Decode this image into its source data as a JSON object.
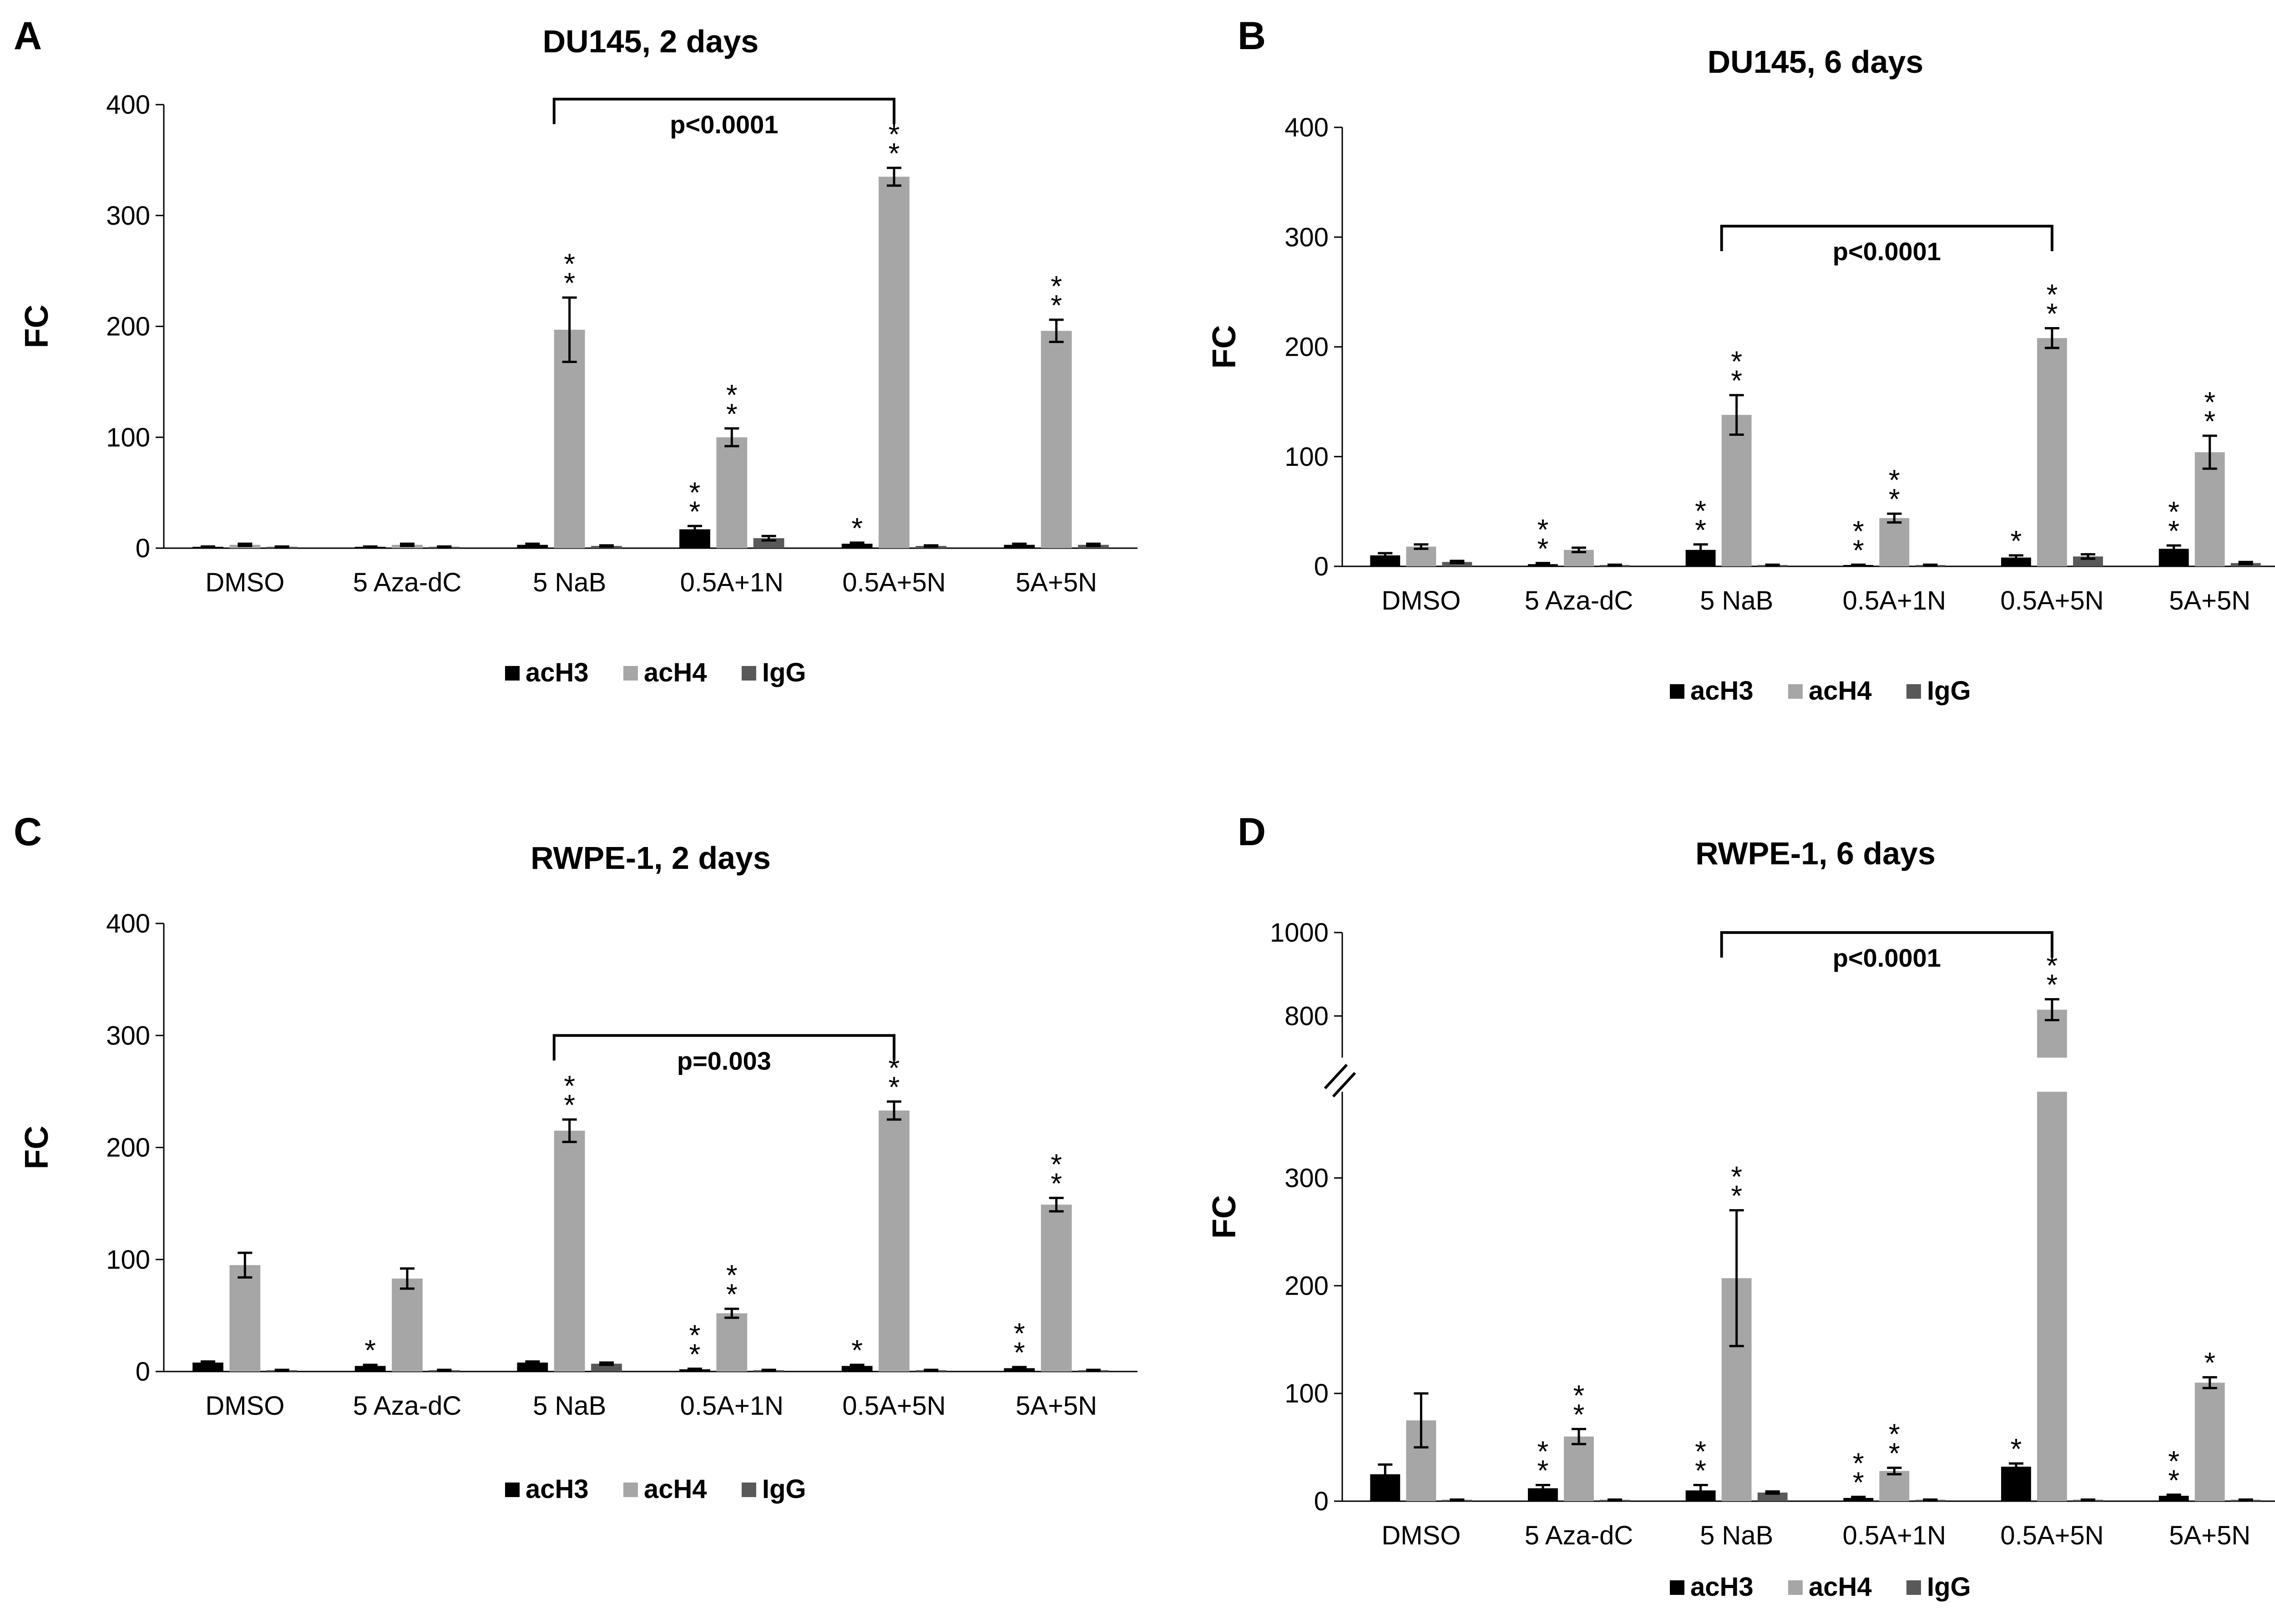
{
  "chart_data": [
    {
      "panel": "A",
      "type": "bar",
      "title": "DU145, 2 days",
      "ylabel": "FC",
      "ylim": [
        0,
        400
      ],
      "yticks": [
        "0",
        "100",
        "200",
        "300",
        "400"
      ],
      "categories": [
        "DMSO",
        "5 Aza-dC",
        "5 NaB",
        "0.5A+1N",
        "0.5A+5N",
        "5A+5N"
      ],
      "series": [
        {
          "name": "acH3",
          "values": [
            1,
            1,
            3,
            17,
            4,
            3
          ],
          "errors": [
            0.5,
            0.5,
            1,
            3,
            1,
            1
          ]
        },
        {
          "name": "acH4",
          "values": [
            3,
            3,
            197,
            100,
            335,
            196
          ],
          "errors": [
            1,
            1,
            29,
            8,
            8,
            10
          ]
        },
        {
          "name": "IgG",
          "values": [
            1,
            1,
            2,
            9,
            2,
            3
          ],
          "errors": [
            0.5,
            0.5,
            0.5,
            2,
            0.5,
            1
          ]
        }
      ],
      "significance": [
        [
          "",
          "",
          ""
        ],
        [
          "",
          "",
          ""
        ],
        [
          "",
          "**",
          ""
        ],
        [
          "**",
          "**",
          ""
        ],
        [
          "*",
          "**",
          ""
        ],
        [
          "",
          "**",
          ""
        ]
      ],
      "bracket": {
        "label": "p<0.0001",
        "from": 2,
        "to": 4,
        "y": 405
      },
      "legend": [
        "acH3",
        "acH4",
        "IgG"
      ]
    },
    {
      "panel": "B",
      "type": "bar",
      "title": "DU145, 6 days",
      "ylabel": "FC",
      "ylim": [
        0,
        400
      ],
      "yticks": [
        "0",
        "100",
        "200",
        "300",
        "400"
      ],
      "categories": [
        "DMSO",
        "5 Aza-dC",
        "5 NaB",
        "0.5A+1N",
        "0.5A+5N",
        "5A+5N"
      ],
      "series": [
        {
          "name": "acH3",
          "values": [
            10,
            2,
            15,
            1,
            8,
            16
          ],
          "errors": [
            2,
            1,
            5,
            0.5,
            2,
            3
          ]
        },
        {
          "name": "acH4",
          "values": [
            18,
            15,
            138,
            44,
            208,
            104
          ],
          "errors": [
            2,
            2,
            18,
            4,
            9,
            15
          ]
        },
        {
          "name": "IgG",
          "values": [
            4,
            1,
            1,
            1,
            9,
            3
          ],
          "errors": [
            1,
            0.5,
            0.5,
            0.5,
            2,
            1
          ]
        }
      ],
      "significance": [
        [
          "",
          "",
          ""
        ],
        [
          "**",
          "",
          ""
        ],
        [
          "**",
          "**",
          ""
        ],
        [
          "**",
          "**",
          ""
        ],
        [
          "*",
          "**",
          ""
        ],
        [
          "**",
          "**",
          ""
        ]
      ],
      "bracket": {
        "label": "p<0.0001",
        "from": 2,
        "to": 4,
        "y": 310
      },
      "legend": [
        "acH3",
        "acH4",
        "IgG"
      ]
    },
    {
      "panel": "C",
      "type": "bar",
      "title": "RWPE-1, 2 days",
      "ylabel": "FC",
      "ylim": [
        0,
        400
      ],
      "yticks": [
        "0",
        "100",
        "200",
        "300",
        "400"
      ],
      "categories": [
        "DMSO",
        "5 Aza-dC",
        "5 NaB",
        "0.5A+1N",
        "0.5A+5N",
        "5A+5N"
      ],
      "series": [
        {
          "name": "acH3",
          "values": [
            8,
            5,
            8,
            2,
            5,
            3
          ],
          "errors": [
            1,
            1,
            1,
            0.5,
            1,
            1
          ]
        },
        {
          "name": "acH4",
          "values": [
            95,
            83,
            215,
            52,
            233,
            149
          ],
          "errors": [
            11,
            9,
            10,
            4,
            8,
            6
          ]
        },
        {
          "name": "IgG",
          "values": [
            1,
            1,
            7,
            1,
            1,
            1
          ],
          "errors": [
            0.5,
            0.5,
            1,
            0.5,
            0.5,
            0.5
          ]
        }
      ],
      "significance": [
        [
          "",
          "",
          ""
        ],
        [
          "*",
          "",
          ""
        ],
        [
          "",
          "**",
          ""
        ],
        [
          "**",
          "**",
          ""
        ],
        [
          "*",
          "**",
          ""
        ],
        [
          "**",
          "**",
          ""
        ]
      ],
      "bracket": {
        "label": "p=0.003",
        "from": 2,
        "to": 4,
        "y": 300
      },
      "legend": [
        "acH3",
        "acH4",
        "IgG"
      ]
    },
    {
      "panel": "D",
      "type": "bar",
      "title": "RWPE-1, 6 days",
      "ylabel": "FC",
      "broken_axis": true,
      "ylim_lower": [
        0,
        380
      ],
      "ylim_upper": [
        700,
        1000
      ],
      "yticks": [
        "0",
        "100",
        "200",
        "300",
        "800",
        "1000"
      ],
      "categories": [
        "DMSO",
        "5 Aza-dC",
        "5 NaB",
        "0.5A+1N",
        "0.5A+5N",
        "5A+5N"
      ],
      "series": [
        {
          "name": "acH3",
          "values": [
            25,
            12,
            10,
            3,
            32,
            5
          ],
          "errors": [
            9,
            3,
            5,
            1,
            3,
            1
          ]
        },
        {
          "name": "acH4",
          "values": [
            75,
            60,
            207,
            28,
            815,
            110
          ],
          "errors": [
            25,
            7,
            63,
            3,
            25,
            5
          ]
        },
        {
          "name": "IgG",
          "values": [
            1,
            1,
            8,
            1,
            1,
            1
          ],
          "errors": [
            0.5,
            0.5,
            1,
            0.5,
            0.5,
            0.5
          ]
        }
      ],
      "significance": [
        [
          "",
          "",
          ""
        ],
        [
          "**",
          "**",
          ""
        ],
        [
          "**",
          "**",
          ""
        ],
        [
          "**",
          "**",
          ""
        ],
        [
          "*",
          "**",
          ""
        ],
        [
          "**",
          "*",
          ""
        ]
      ],
      "bracket": {
        "label": "p<0.0001",
        "from": 2,
        "to": 4,
        "y": 1000
      },
      "legend": [
        "acH3",
        "acH4",
        "IgG"
      ]
    }
  ],
  "colors": {
    "acH3": "#000000",
    "acH4": "#a6a6a6",
    "IgG": "#595959"
  }
}
